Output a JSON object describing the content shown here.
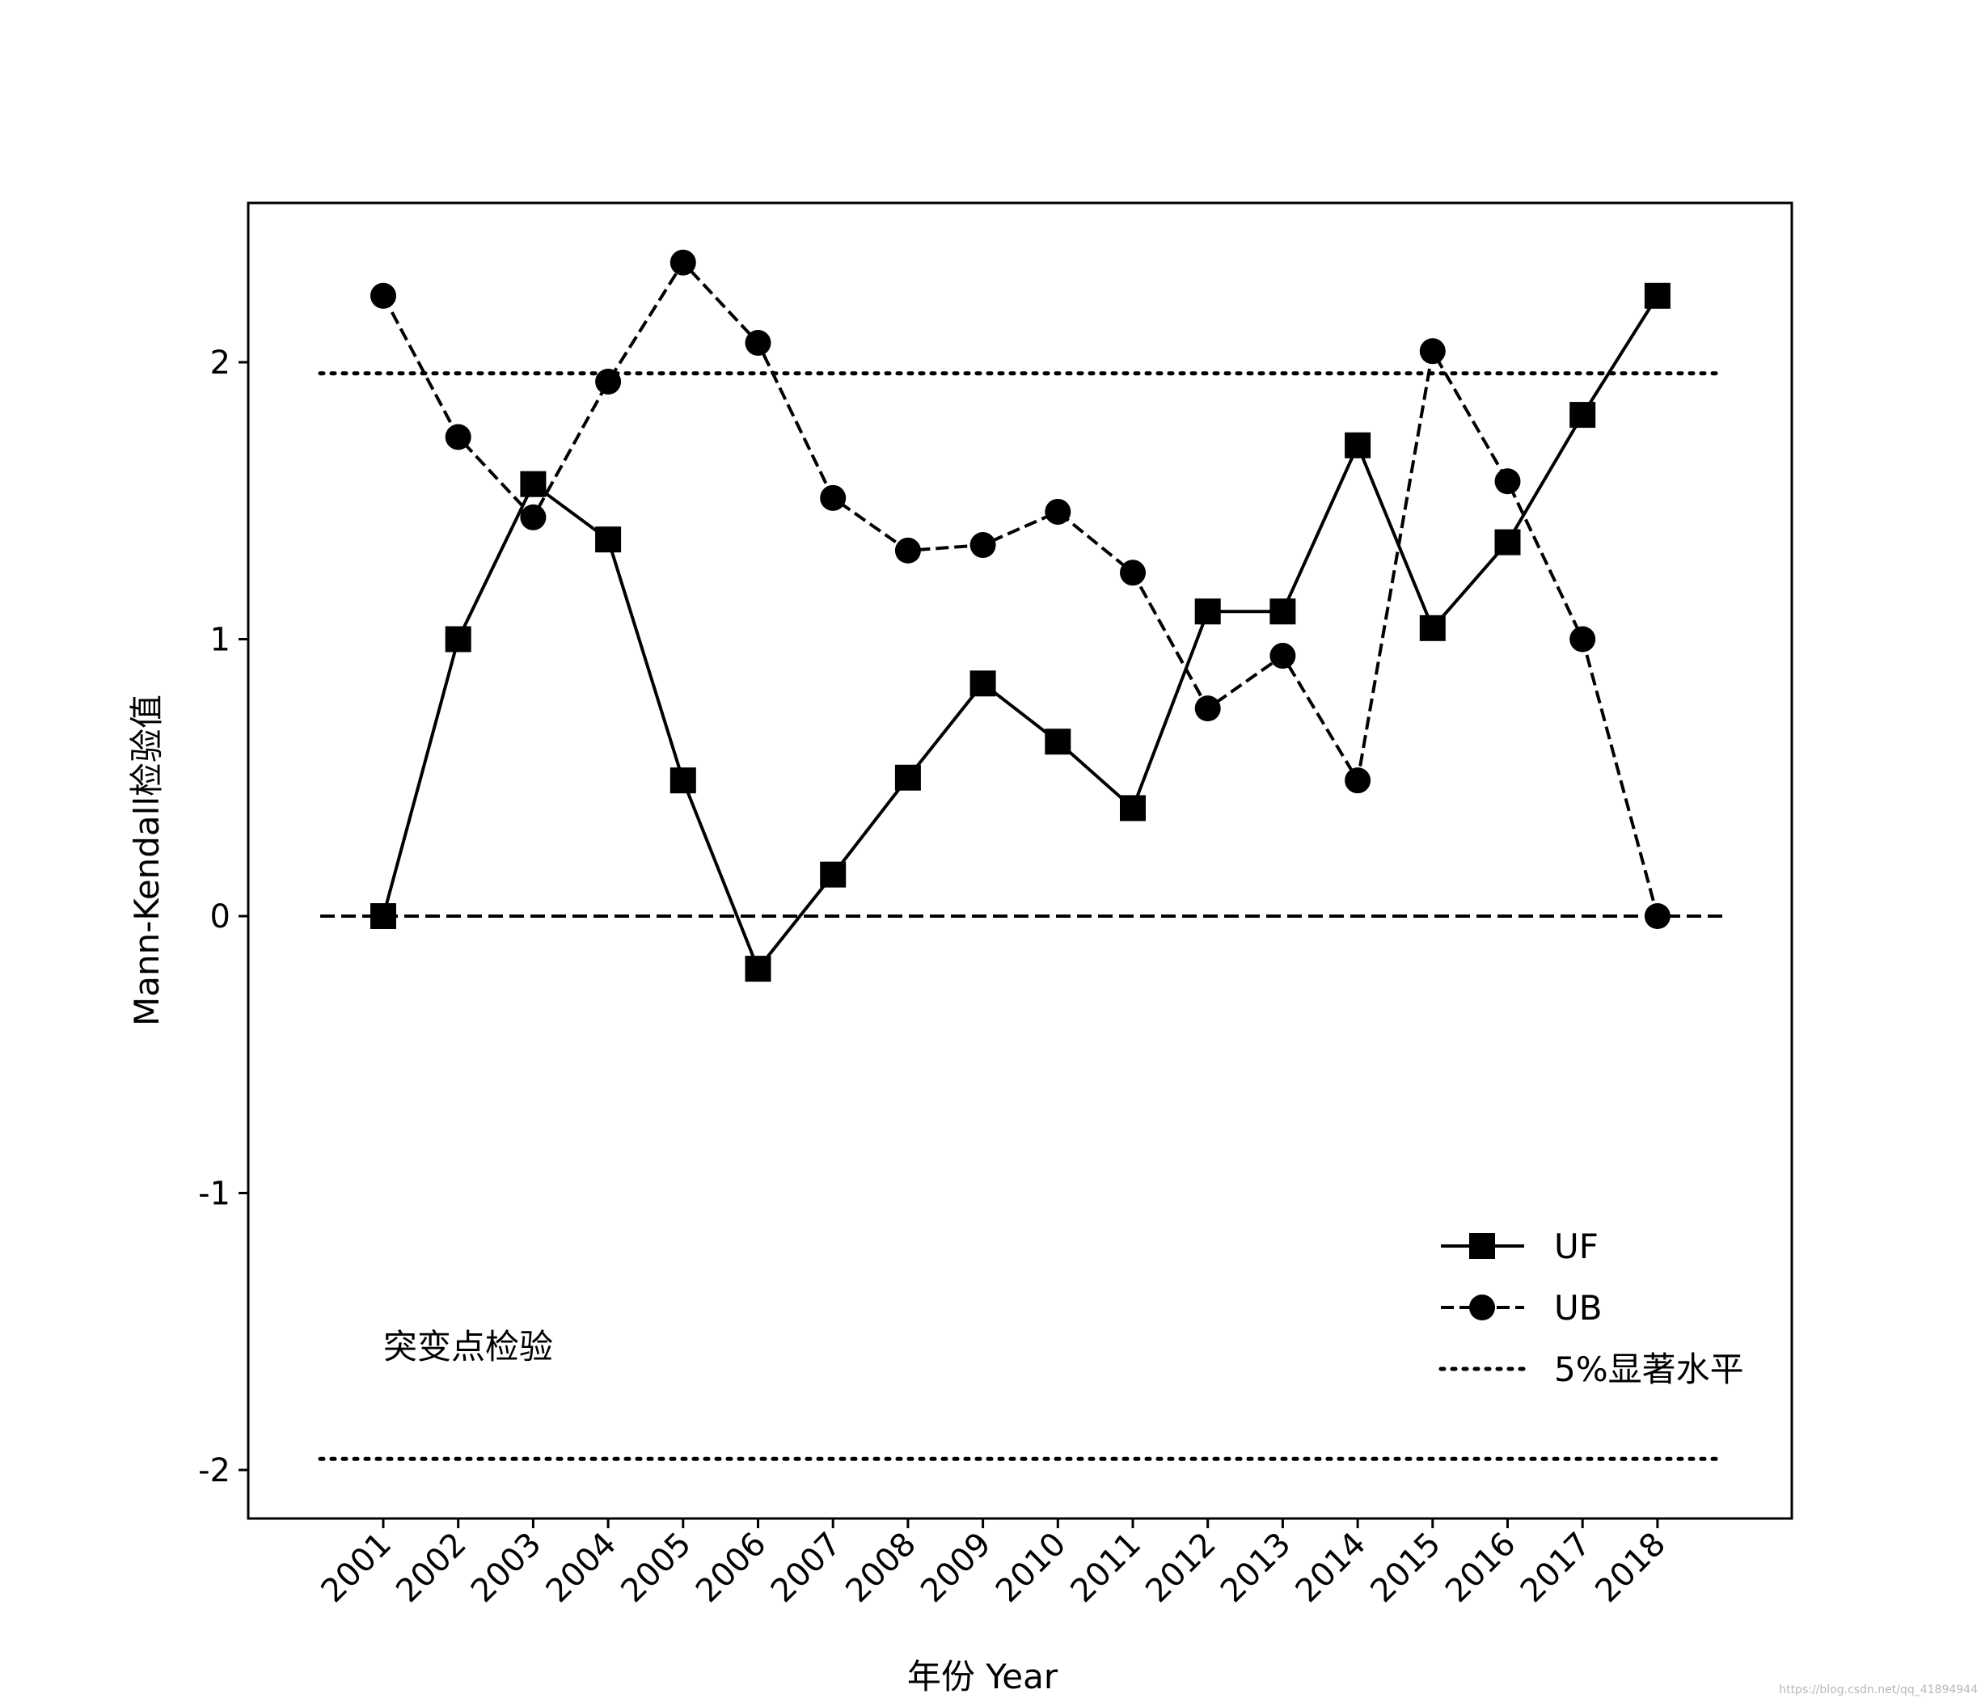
{
  "chart_data": {
    "type": "line",
    "x": [
      "2001",
      "2002",
      "2003",
      "2004",
      "2005",
      "2006",
      "2007",
      "2008",
      "2009",
      "2010",
      "2011",
      "2012",
      "2013",
      "2014",
      "2015",
      "2016",
      "2017",
      "2018"
    ],
    "xlabel": "年份 Year",
    "ylabel": "Mann-Kendall检验值",
    "ylim": [
      -2.17,
      2.58
    ],
    "yticks": [
      -2,
      -1,
      0,
      1,
      2
    ],
    "ytick_labels": [
      "-2",
      "-1",
      "0",
      "1",
      "2"
    ],
    "xtick_rotation": 45,
    "grid": false,
    "legend_position": "lower-right",
    "annotation": "突变点检验",
    "watermark": "https://blog.csdn.net/qq_41894944",
    "series": [
      {
        "name": "UF",
        "line_style": "solid",
        "marker": "square",
        "color": "#000000",
        "values": [
          0.0,
          1.0,
          1.56,
          1.36,
          0.49,
          -0.19,
          0.15,
          0.5,
          0.84,
          0.63,
          0.39,
          1.1,
          1.1,
          1.7,
          1.04,
          1.35,
          1.81,
          2.24
        ]
      },
      {
        "name": "UB",
        "line_style": "dashed",
        "marker": "circle",
        "color": "#000000",
        "values": [
          2.24,
          1.73,
          1.44,
          1.93,
          2.36,
          2.07,
          1.51,
          1.32,
          1.34,
          1.46,
          1.24,
          0.75,
          0.94,
          0.49,
          2.04,
          1.57,
          1.0,
          0.0
        ]
      }
    ],
    "reference_lines": [
      {
        "name": "5%显著水平",
        "y": 1.96,
        "line_style": "dotted",
        "in_legend": true
      },
      {
        "y": -1.96,
        "line_style": "dotted",
        "in_legend": false
      },
      {
        "y": 0,
        "line_style": "dashed",
        "in_legend": false
      }
    ]
  }
}
